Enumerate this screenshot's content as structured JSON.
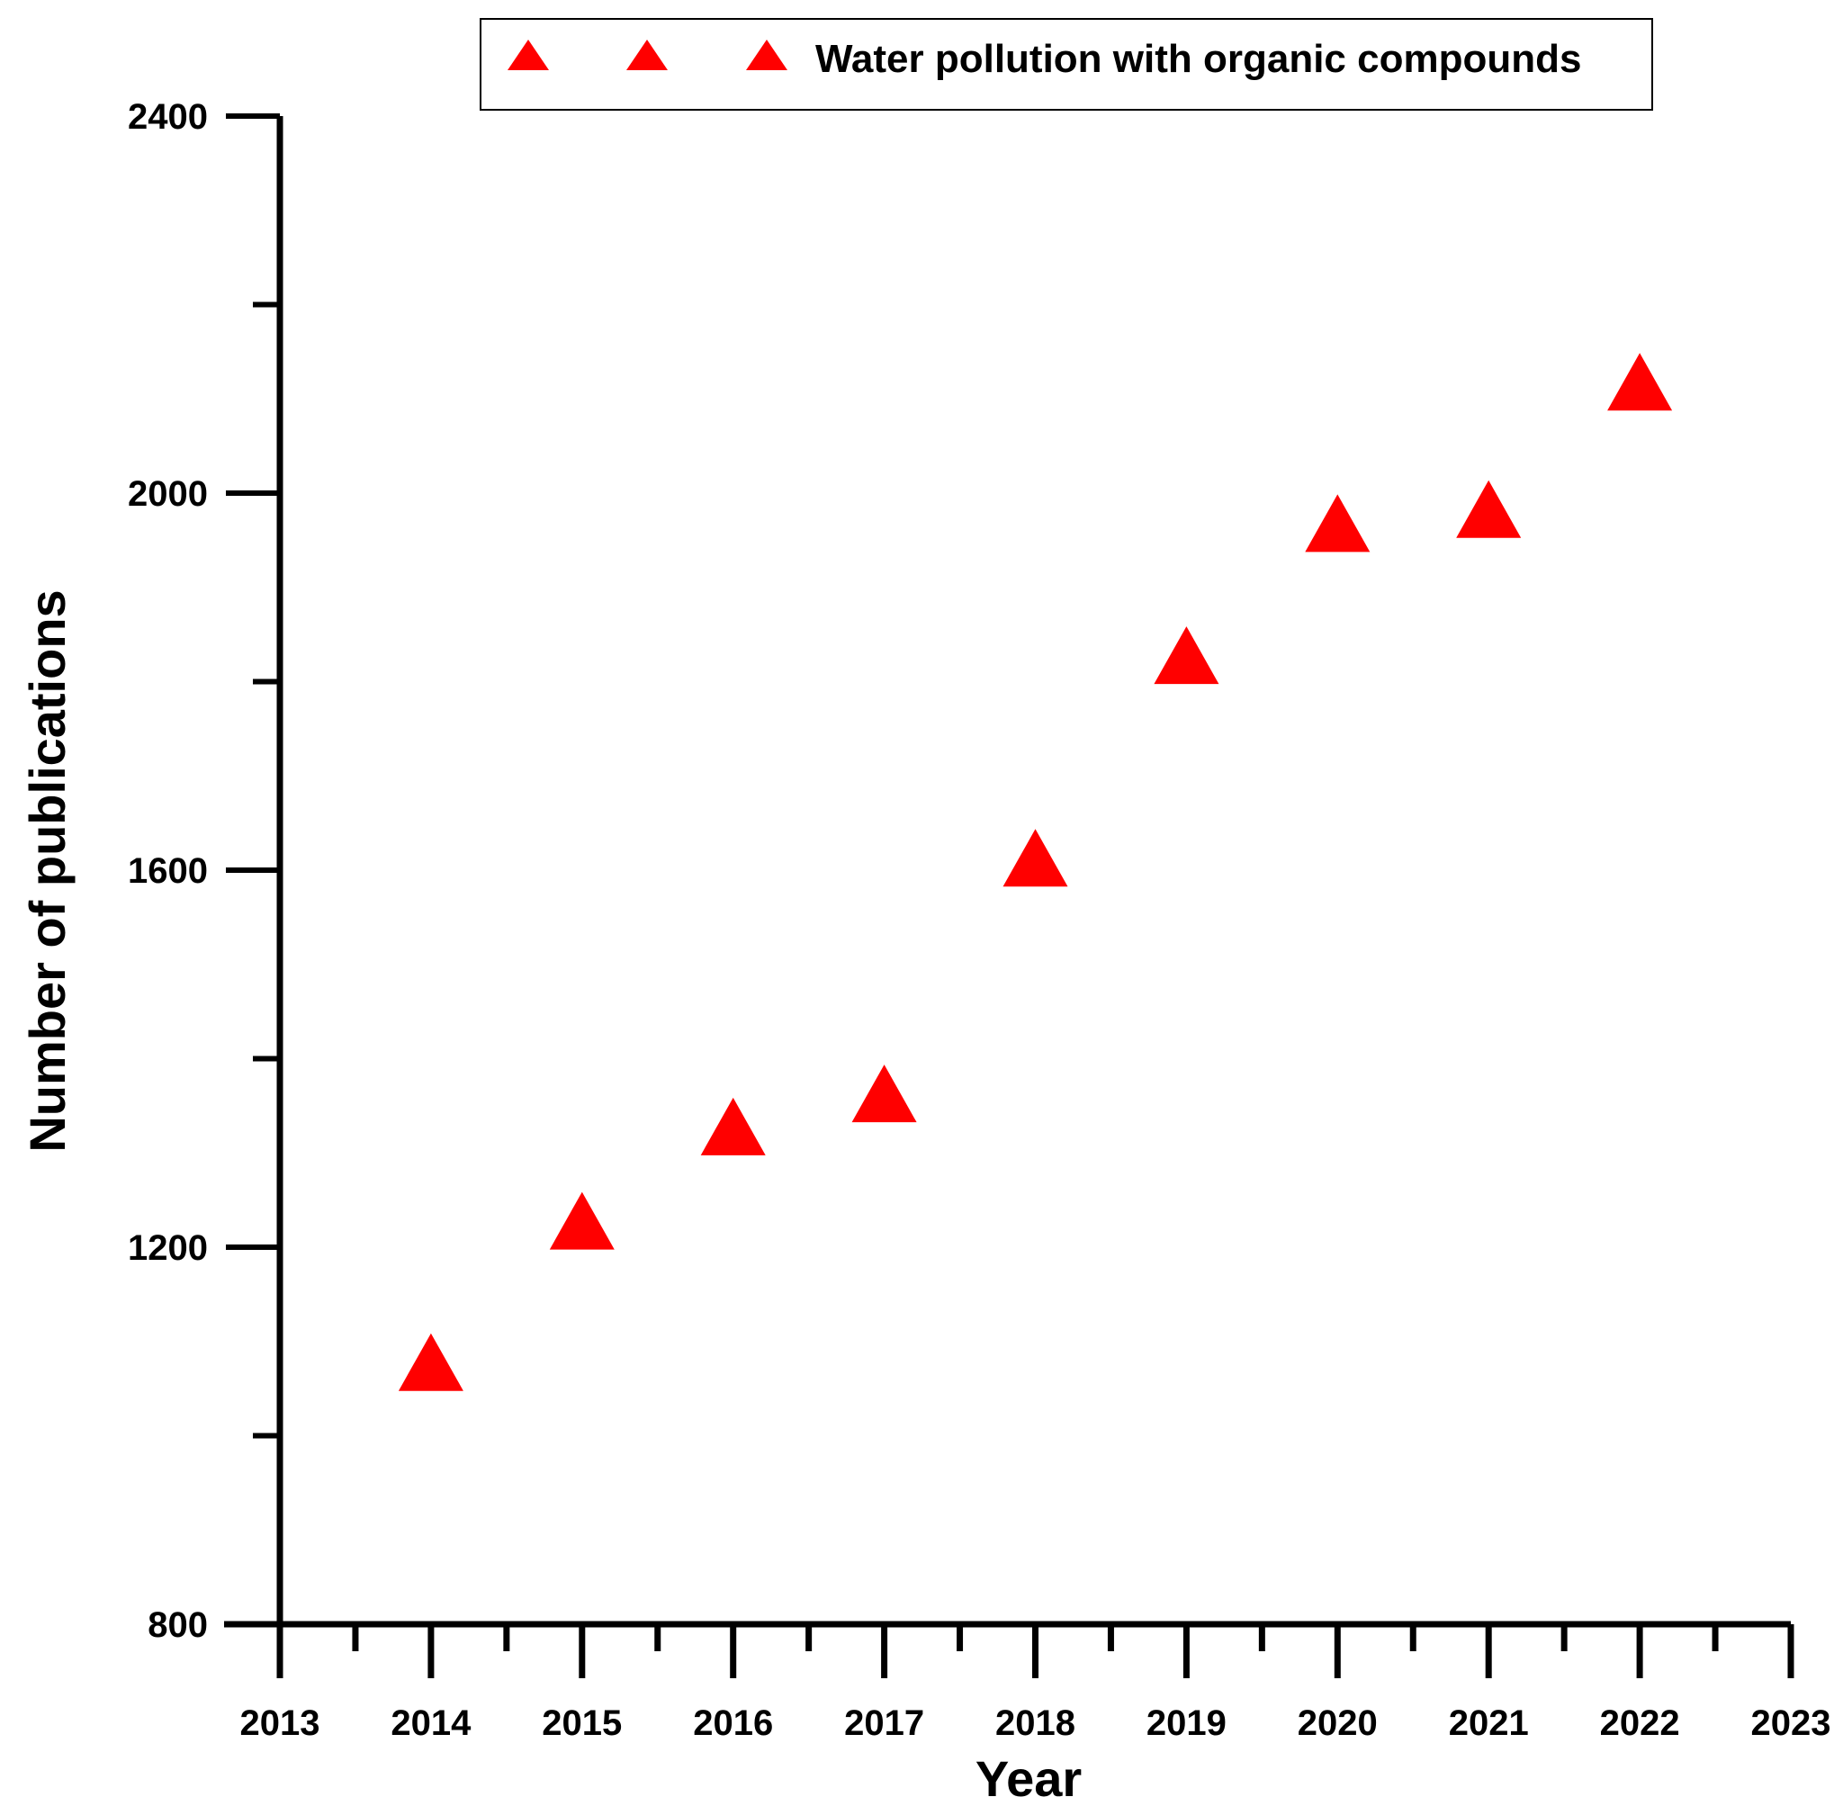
{
  "chart_data": {
    "type": "scatter",
    "title": "",
    "xlabel": "Year",
    "ylabel": "Number of publications",
    "xlim": [
      2013,
      2023
    ],
    "ylim": [
      800,
      2400
    ],
    "x_ticks": [
      "2013",
      "2014",
      "2015",
      "2016",
      "2017",
      "2018",
      "2019",
      "2020",
      "2021",
      "2022",
      "2023"
    ],
    "y_ticks": [
      "800",
      "1200",
      "1600",
      "2000",
      "2400"
    ],
    "grid": false,
    "legend": {
      "position": "top-center",
      "entries": [
        "Water pollution with organic compounds"
      ]
    },
    "series": [
      {
        "name": "Water pollution with organic compounds",
        "color": "#ff0000",
        "marker": "triangle",
        "x": [
          2014,
          2015,
          2016,
          2017,
          2018,
          2019,
          2020,
          2021,
          2022
        ],
        "y": [
          1080,
          1230,
          1330,
          1365,
          1615,
          1830,
          1970,
          1985,
          2120
        ]
      }
    ]
  }
}
